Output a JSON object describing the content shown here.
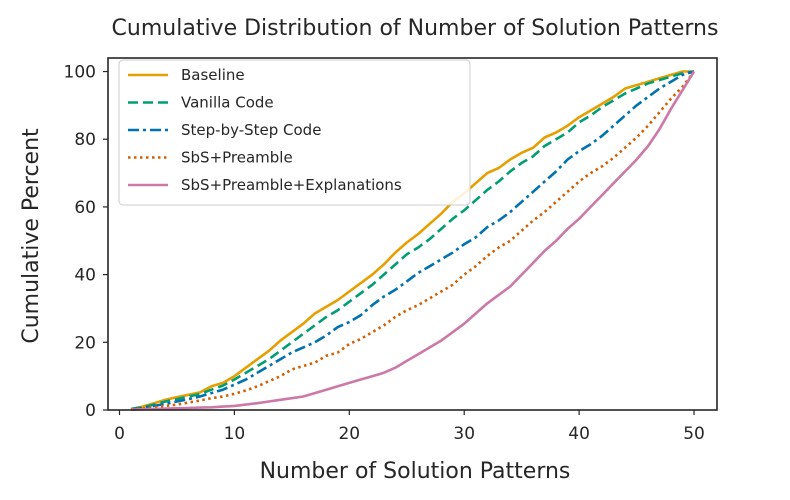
{
  "chart_data": {
    "type": "line",
    "title": "Cumulative Distribution of Number of Solution Patterns",
    "xlabel": "Number of Solution Patterns",
    "ylabel": "Cumulative Percent",
    "xlim": [
      -1,
      52
    ],
    "ylim": [
      0,
      104
    ],
    "xticks": [
      0,
      10,
      20,
      30,
      40,
      50
    ],
    "yticks": [
      0,
      20,
      40,
      60,
      80,
      100
    ],
    "grid": false,
    "legend_position": "top-left",
    "series": [
      {
        "name": "Baseline",
        "color": "#e69f00",
        "dash": "solid",
        "x": [
          1,
          2,
          3,
          4,
          5,
          6,
          7,
          8,
          9,
          10,
          11,
          12,
          13,
          14,
          15,
          16,
          17,
          18,
          19,
          20,
          21,
          22,
          23,
          24,
          25,
          26,
          27,
          28,
          29,
          30,
          31,
          32,
          33,
          34,
          35,
          36,
          37,
          38,
          39,
          40,
          41,
          42,
          43,
          44,
          45,
          46,
          47,
          48,
          49,
          50
        ],
        "y": [
          0.3,
          1,
          2,
          3,
          3.8,
          4.5,
          5.2,
          7,
          8,
          10,
          12.5,
          15,
          17.5,
          20.5,
          23,
          25.5,
          28.5,
          30.5,
          32.5,
          35,
          37.5,
          40,
          43,
          46.5,
          49.5,
          52,
          55,
          58,
          61.5,
          64,
          67,
          70,
          71.5,
          74,
          76,
          77.5,
          80.5,
          82,
          84,
          86.5,
          88.5,
          90.5,
          92.5,
          95,
          96,
          97,
          98,
          99,
          100,
          100
        ]
      },
      {
        "name": "Vanilla Code",
        "color": "#009e73",
        "dash": "dashed",
        "x": [
          1,
          2,
          3,
          4,
          5,
          6,
          7,
          8,
          9,
          10,
          11,
          12,
          13,
          14,
          15,
          16,
          17,
          18,
          19,
          20,
          21,
          22,
          23,
          24,
          25,
          26,
          27,
          28,
          29,
          30,
          31,
          32,
          33,
          34,
          35,
          36,
          37,
          38,
          39,
          40,
          41,
          42,
          43,
          44,
          45,
          46,
          47,
          48,
          49,
          50
        ],
        "y": [
          0.3,
          0.8,
          1.6,
          2.5,
          3.2,
          4,
          4.7,
          6,
          7.2,
          9,
          11,
          13,
          15,
          17.5,
          20,
          22.5,
          25,
          27.5,
          29.5,
          32,
          34.5,
          37,
          40,
          43,
          46,
          48,
          50.5,
          53.5,
          56.5,
          59,
          62,
          65,
          67.5,
          70.5,
          73,
          75,
          78,
          80,
          82,
          85,
          87,
          89.5,
          91.5,
          93.5,
          95,
          96.5,
          97.5,
          98.5,
          99.5,
          100
        ]
      },
      {
        "name": "Step-by-Step Code",
        "color": "#0072b2",
        "dash": "dashdot",
        "x": [
          1,
          2,
          3,
          4,
          5,
          6,
          7,
          8,
          9,
          10,
          11,
          12,
          13,
          14,
          15,
          16,
          17,
          18,
          19,
          20,
          21,
          22,
          23,
          24,
          25,
          26,
          27,
          28,
          29,
          30,
          31,
          32,
          33,
          34,
          35,
          36,
          37,
          38,
          39,
          40,
          41,
          42,
          43,
          44,
          45,
          46,
          47,
          48,
          49,
          50
        ],
        "y": [
          0.2,
          0.6,
          1.2,
          1.8,
          2.5,
          3.2,
          4,
          5,
          6,
          7.5,
          9,
          11,
          13,
          15,
          17,
          18.5,
          20,
          22,
          24.5,
          26,
          28,
          31,
          33.5,
          35.5,
          38,
          40.5,
          42.5,
          44.5,
          46.5,
          49,
          51,
          54,
          56,
          58.5,
          61.5,
          64.5,
          67.5,
          70.5,
          74,
          76.5,
          78.5,
          81,
          84,
          87,
          90,
          92.5,
          95,
          97,
          99,
          100
        ]
      },
      {
        "name": "SbS+Preamble",
        "color": "#d55e00",
        "dash": "dotted",
        "x": [
          1,
          2,
          3,
          4,
          5,
          6,
          7,
          8,
          9,
          10,
          11,
          12,
          13,
          14,
          15,
          16,
          17,
          18,
          19,
          20,
          21,
          22,
          23,
          24,
          25,
          26,
          27,
          28,
          29,
          30,
          31,
          32,
          33,
          34,
          35,
          36,
          37,
          38,
          39,
          40,
          41,
          42,
          43,
          44,
          45,
          46,
          47,
          48,
          49,
          50
        ],
        "y": [
          0.2,
          0.4,
          0.8,
          1.2,
          1.6,
          2.2,
          2.8,
          3.5,
          4,
          4.8,
          5.8,
          7,
          8.5,
          10,
          12,
          13,
          14,
          16,
          17,
          19.5,
          21,
          23,
          25,
          27.5,
          29.5,
          31,
          33,
          35,
          37,
          40,
          42.5,
          45.5,
          48,
          50,
          53,
          56,
          58.5,
          61.5,
          64.5,
          67.5,
          70,
          72,
          74.5,
          77.5,
          80.5,
          84,
          88,
          92,
          95.5,
          100
        ]
      },
      {
        "name": "SbS+Preamble+Explanations",
        "color": "#cc79a7",
        "dash": "solid",
        "x": [
          1,
          2,
          3,
          4,
          5,
          6,
          7,
          8,
          9,
          10,
          11,
          12,
          13,
          14,
          15,
          16,
          17,
          18,
          19,
          20,
          21,
          22,
          23,
          24,
          25,
          26,
          27,
          28,
          29,
          30,
          31,
          32,
          33,
          34,
          35,
          36,
          37,
          38,
          39,
          40,
          41,
          42,
          43,
          44,
          45,
          46,
          47,
          48,
          49,
          50
        ],
        "y": [
          0.1,
          0.2,
          0.3,
          0.4,
          0.5,
          0.6,
          0.7,
          0.8,
          1,
          1.2,
          1.6,
          2,
          2.5,
          3,
          3.5,
          4,
          5,
          6,
          7,
          8,
          9,
          10,
          11,
          12.5,
          14.5,
          16.5,
          18.5,
          20.5,
          23,
          25.5,
          28.5,
          31.5,
          34,
          36.5,
          40,
          43.5,
          47,
          50,
          53.5,
          56.5,
          60,
          63.5,
          67,
          70.5,
          74,
          78,
          83,
          89,
          94.5,
          100
        ]
      }
    ]
  }
}
